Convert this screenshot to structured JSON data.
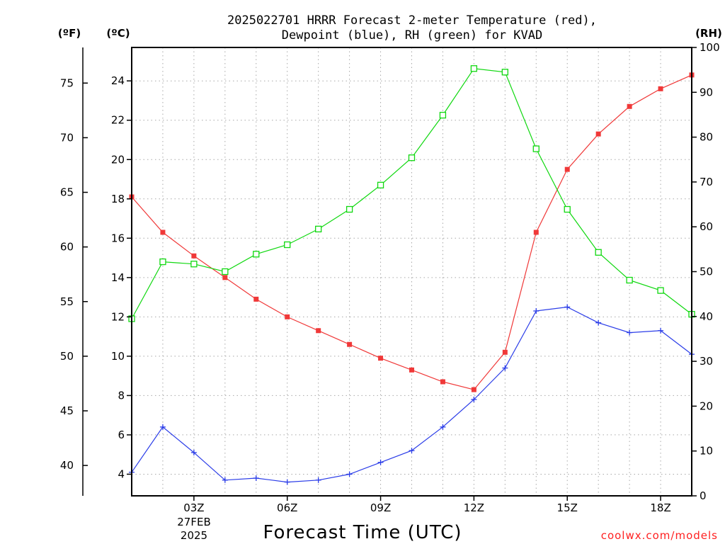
{
  "title_line1": "2025022701 HRRR Forecast 2-meter Temperature (red),",
  "title_line2": "Dewpoint (blue), RH (green) for KVAD",
  "axis_units": {
    "fahrenheit": "(ºF)",
    "celsius": "(ºC)",
    "rh": "(RH)"
  },
  "date_label": {
    "day": "27FEB",
    "year": "2025"
  },
  "credit": "coolwx.com/models",
  "colors": {
    "temperature": "#f03838",
    "dewpoint": "#2a3ce8",
    "rh": "#10d810",
    "axis": "#000000",
    "grid": "#a8a8a8"
  },
  "chart_data": {
    "type": "line",
    "title": "2025022701 HRRR Forecast 2-meter Temperature (red), Dewpoint (blue), RH (green) for KVAD",
    "xlabel": "Forecast Time (UTC)",
    "x": [
      1,
      2,
      3,
      4,
      5,
      6,
      7,
      8,
      9,
      10,
      11,
      12,
      13,
      14,
      15,
      16,
      17,
      18,
      19
    ],
    "x_ticks": [
      {
        "x": 3,
        "label": "03Z"
      },
      {
        "x": 6,
        "label": "06Z"
      },
      {
        "x": 9,
        "label": "09Z"
      },
      {
        "x": 12,
        "label": "12Z"
      },
      {
        "x": 15,
        "label": "15Z"
      },
      {
        "x": 18,
        "label": "18Z"
      }
    ],
    "xlim": [
      1,
      19
    ],
    "y_left_celsius": {
      "label": "(ºC)",
      "ylim": [
        2.9,
        25.7
      ],
      "ticks": [
        4,
        6,
        8,
        10,
        12,
        14,
        16,
        18,
        20,
        22,
        24
      ]
    },
    "y_left_fahrenheit": {
      "label": "(ºF)",
      "ticks": [
        40,
        45,
        50,
        55,
        60,
        65,
        70,
        75
      ]
    },
    "y_right_rh": {
      "label": "(RH)",
      "ylim": [
        0,
        100
      ],
      "ticks": [
        0,
        10,
        20,
        30,
        40,
        50,
        60,
        70,
        80,
        90,
        100
      ]
    },
    "series": [
      {
        "axis": "celsius",
        "marker": "filled-square",
        "values": [
          18.1,
          16.3,
          15.1,
          14.0,
          12.9,
          12.0,
          11.3,
          10.6,
          9.9,
          9.3,
          8.7,
          8.3,
          10.2,
          16.3,
          19.5,
          21.3,
          22.7,
          23.6,
          24.3
        ]
      },
      {
        "axis": "celsius",
        "marker": "plus",
        "values": [
          4.1,
          6.4,
          5.1,
          3.7,
          3.8,
          3.6,
          3.7,
          4.0,
          4.6,
          5.2,
          6.4,
          7.8,
          9.4,
          12.3,
          12.5,
          11.7,
          11.2,
          11.3,
          10.1
        ]
      },
      {
        "axis": "rh",
        "marker": "open-square",
        "values": [
          39.5,
          52.2,
          51.7,
          50.0,
          53.9,
          56.0,
          59.5,
          63.9,
          69.3,
          75.4,
          84.9,
          95.3,
          94.5,
          77.4,
          63.9,
          54.3,
          48.1,
          45.8,
          40.5
        ]
      }
    ],
    "grid": true
  }
}
